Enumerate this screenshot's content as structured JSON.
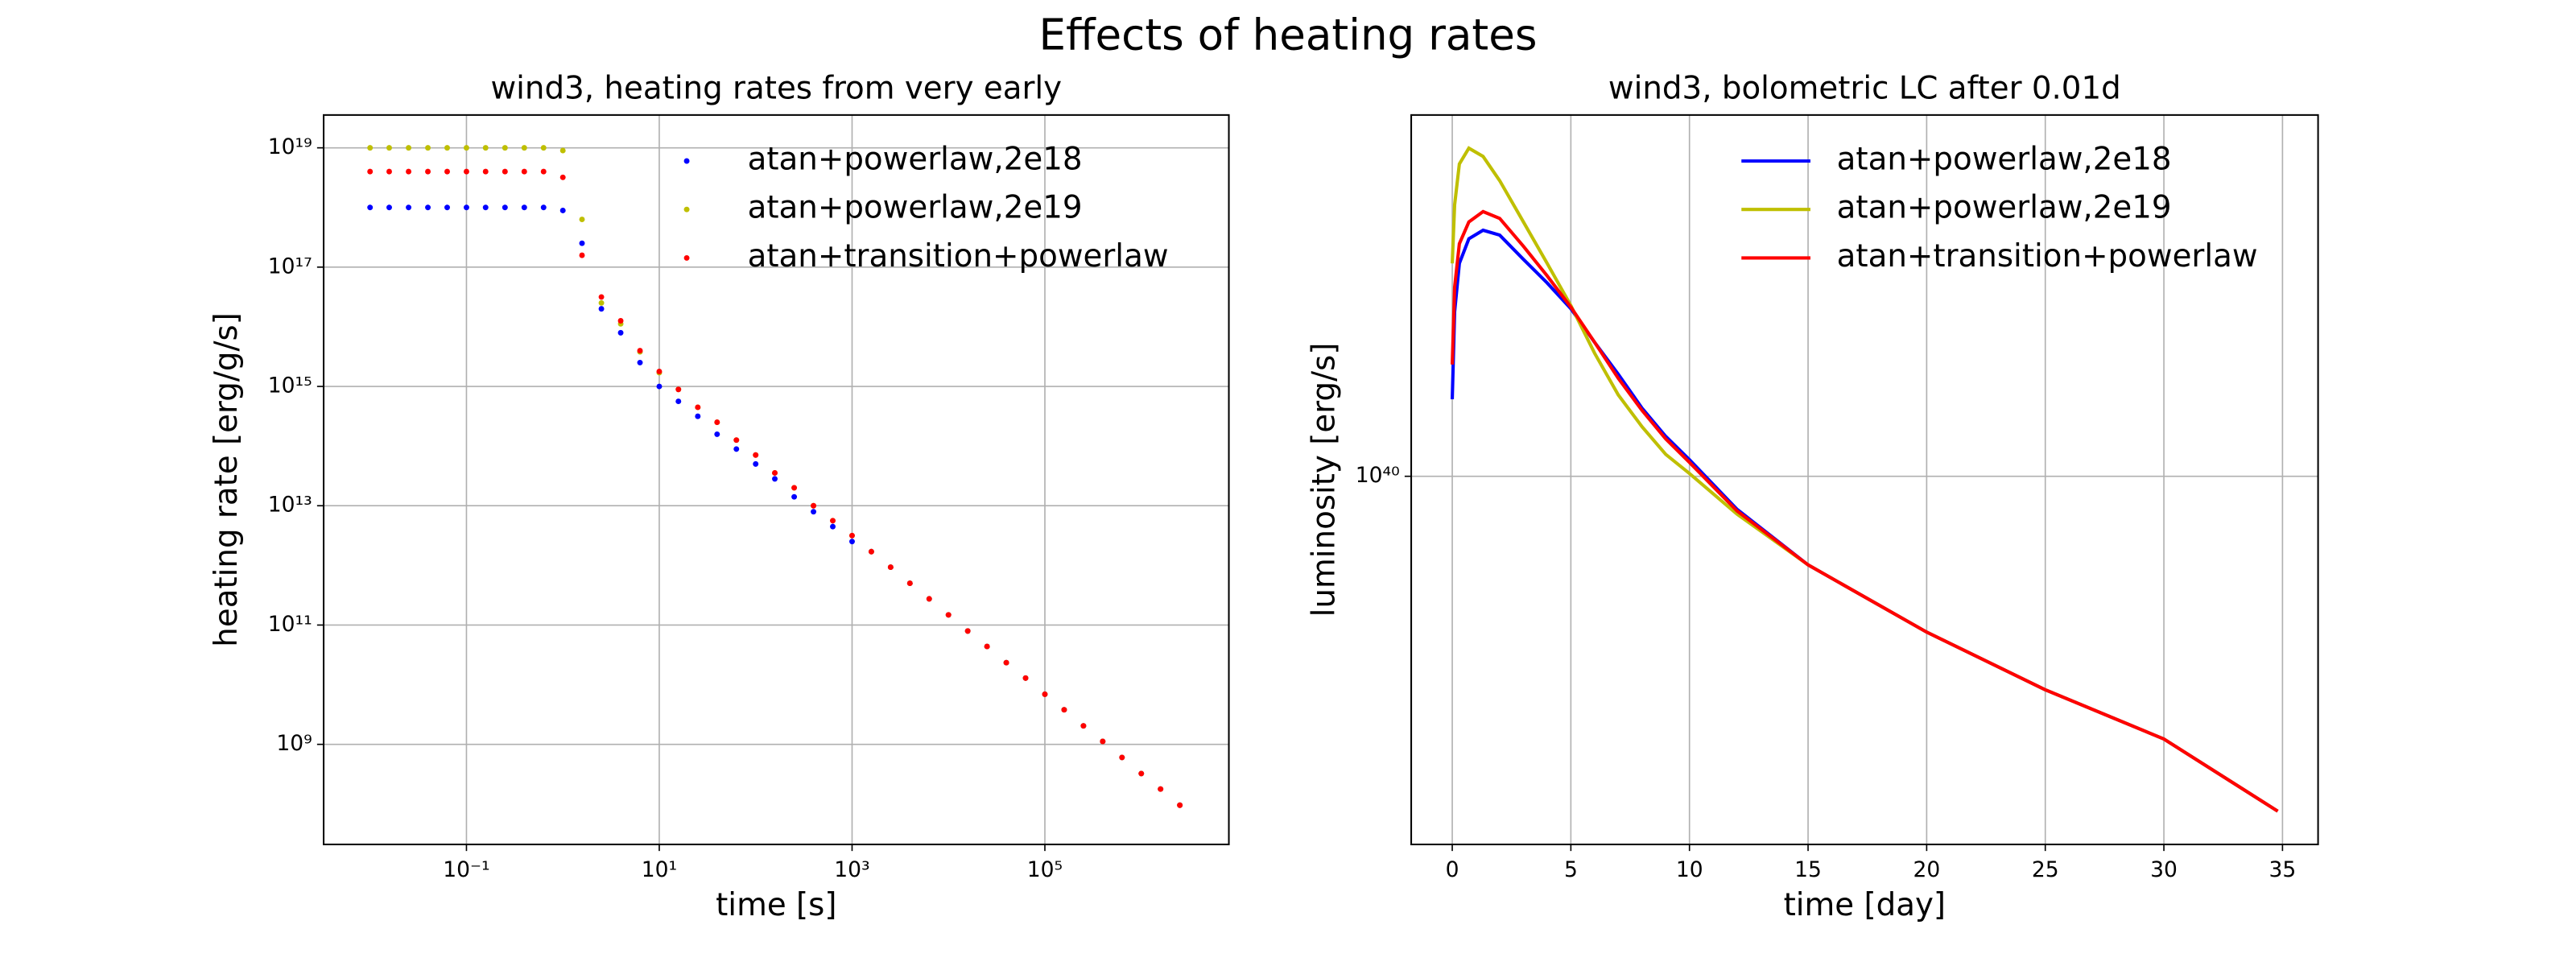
{
  "title": "Effects of heating rates",
  "chart_data": [
    {
      "type": "scatter",
      "title": "wind3, heating rates from very early",
      "xlabel": "time [s]",
      "ylabel": "heating rate [erg/g/s]",
      "xscale": "log",
      "yscale": "log",
      "grid": true,
      "legend": "upper right",
      "xlim": [
        0.0033,
        8100000
      ],
      "ylim": [
        21000000,
        3.55e+19
      ],
      "xticks": [
        {
          "value": 0.1,
          "label": "10⁻¹"
        },
        {
          "value": 10,
          "label": "10¹"
        },
        {
          "value": 1000,
          "label": "10³"
        },
        {
          "value": 100000,
          "label": "10⁵"
        }
      ],
      "yticks": [
        {
          "value": 1000000000.0,
          "label": "10⁹"
        },
        {
          "value": 100000000000.0,
          "label": "10¹¹"
        },
        {
          "value": 10000000000000.0,
          "label": "10¹³"
        },
        {
          "value": 1000000000000000.0,
          "label": "10¹⁵"
        },
        {
          "value": 1e+17,
          "label": "10¹⁷"
        },
        {
          "value": 1e+19,
          "label": "10¹⁹"
        }
      ],
      "x": [
        0.01,
        0.0158,
        0.0251,
        0.0398,
        0.0631,
        0.1,
        0.158,
        0.251,
        0.398,
        0.631,
        1,
        1.58,
        2.51,
        3.98,
        6.31,
        10,
        15.8,
        25.1,
        39.8,
        63.1,
        100,
        158,
        251,
        398,
        631,
        1000,
        1585,
        2512,
        3981,
        6310,
        10000,
        15849,
        25119,
        39811,
        63096,
        100000,
        158489,
        251189,
        398107,
        630957,
        1000000,
        1584893,
        2511886
      ],
      "series": [
        {
          "name": "atan+powerlaw,2e18",
          "color": "#0000ff",
          "values": [
            1e+18,
            1e+18,
            1e+18,
            1e+18,
            1e+18,
            1e+18,
            1e+18,
            1e+18,
            1e+18,
            1e+18,
            8.9e+17,
            2.51e+17,
            2e+16,
            7940000000000000.0,
            2510000000000000.0,
            1000000000000000.0,
            562000000000000.0,
            316000000000000.0,
            158000000000000.0,
            89100000000000.0,
            50100000000000.0,
            28200000000000.0,
            14100000000000.0,
            7940000000000.0,
            4470000000000.0,
            2510000000000.0,
            1700000000000.0,
            933000000000.0,
            501000000000.0,
            275000000000.0,
            148000000000.0,
            79400000000.0,
            43700000000.0,
            23400000000.0,
            12900000000.0,
            6920000000.0,
            3800000000.0,
            2040000000.0,
            1120000000.0,
            603000000.0,
            324000000.0,
            178000000.0,
            95500000.0
          ]
        },
        {
          "name": "atan+powerlaw,2e19",
          "color": "#bfbf00",
          "values": [
            1e+19,
            1e+19,
            1e+19,
            1e+19,
            1e+19,
            1e+19,
            1e+19,
            1e+19,
            1e+19,
            1e+19,
            9e+18,
            6.31e+17,
            2.51e+16,
            1.12e+16,
            3800000000000000.0,
            1700000000000000.0,
            891000000000000.0,
            447000000000000.0,
            251000000000000.0,
            126000000000000.0,
            70800000000000.0,
            35500000000000.0,
            20000000000000.0,
            10000000000000.0,
            5620000000000.0,
            3160000000000.0,
            1700000000000.0,
            933000000000.0,
            501000000000.0,
            275000000000.0,
            148000000000.0,
            79400000000.0,
            43700000000.0,
            23400000000.0,
            12900000000.0,
            6920000000.0,
            3800000000.0,
            2040000000.0,
            1120000000.0,
            603000000.0,
            324000000.0,
            178000000.0,
            95500000.0
          ]
        },
        {
          "name": "atan+transition+powerlaw",
          "color": "#ff0000",
          "values": [
            4e+18,
            4e+18,
            4e+18,
            4e+18,
            4e+18,
            4e+18,
            4e+18,
            4e+18,
            4e+18,
            4e+18,
            3.2e+18,
            1.58e+17,
            3.16e+16,
            1.26e+16,
            3980000000000000.0,
            1780000000000000.0,
            891000000000000.0,
            447000000000000.0,
            251000000000000.0,
            126000000000000.0,
            70800000000000.0,
            35500000000000.0,
            20000000000000.0,
            10000000000000.0,
            5620000000000.0,
            3160000000000.0,
            1700000000000.0,
            933000000000.0,
            501000000000.0,
            275000000000.0,
            148000000000.0,
            79400000000.0,
            43700000000.0,
            23400000000.0,
            12900000000.0,
            6920000000.0,
            3800000000.0,
            2040000000.0,
            1120000000.0,
            603000000.0,
            324000000.0,
            178000000.0,
            95500000.0
          ]
        }
      ]
    },
    {
      "type": "line",
      "title": "wind3, bolometric LC after 0.01d",
      "xlabel": "time [day]",
      "ylabel": "luminosity [erg/s]",
      "xscale": "linear",
      "yscale": "log",
      "grid": true,
      "legend": "upper right",
      "xlim": [
        -1.73,
        36.5
      ],
      "ylim": [
        2.75e+39,
        3.55e+40
      ],
      "xticks": [
        0,
        5,
        10,
        15,
        20,
        25,
        30,
        35
      ],
      "yticks": [
        {
          "value": 1e+40,
          "label": "10⁴⁰"
        }
      ],
      "x": [
        0,
        0.1,
        0.3,
        0.7,
        1.3,
        2,
        3,
        4,
        5,
        6,
        7,
        8,
        9,
        10,
        12,
        15,
        20,
        25,
        30,
        34.8
      ],
      "series": [
        {
          "name": "atan+powerlaw,2e18",
          "color": "#0000ff",
          "values": [
            1.31e+40,
            1.78e+40,
            2.11e+40,
            2.3e+40,
            2.37e+40,
            2.33e+40,
            2.14e+40,
            1.97e+40,
            1.8e+40,
            1.6e+40,
            1.43e+40,
            1.27e+40,
            1.15e+40,
            1.06e+40,
            8.91e+39,
            7.33e+39,
            5.79e+39,
            4.73e+39,
            3.98e+39,
            3.09e+39
          ]
        },
        {
          "name": "atan+powerlaw,2e19",
          "color": "#bfbf00",
          "values": [
            2.11e+40,
            2.59e+40,
            2.99e+40,
            3.16e+40,
            3.07e+40,
            2.82e+40,
            2.44e+40,
            2.11e+40,
            1.82e+40,
            1.54e+40,
            1.33e+40,
            1.19e+40,
            1.08e+40,
            1.01e+40,
            8.76e+39,
            7.33e+39,
            5.79e+39,
            4.73e+39,
            3.98e+39,
            3.09e+39
          ]
        },
        {
          "name": "atan+transition+powerlaw",
          "color": "#ff0000",
          "values": [
            1.48e+40,
            1.94e+40,
            2.26e+40,
            2.44e+40,
            2.53e+40,
            2.47e+40,
            2.24e+40,
            2.02e+40,
            1.81e+40,
            1.6e+40,
            1.41e+40,
            1.26e+40,
            1.14e+40,
            1.05e+40,
            8.86e+39,
            7.33e+39,
            5.79e+39,
            4.73e+39,
            3.98e+39,
            3.09e+39
          ]
        }
      ]
    }
  ]
}
